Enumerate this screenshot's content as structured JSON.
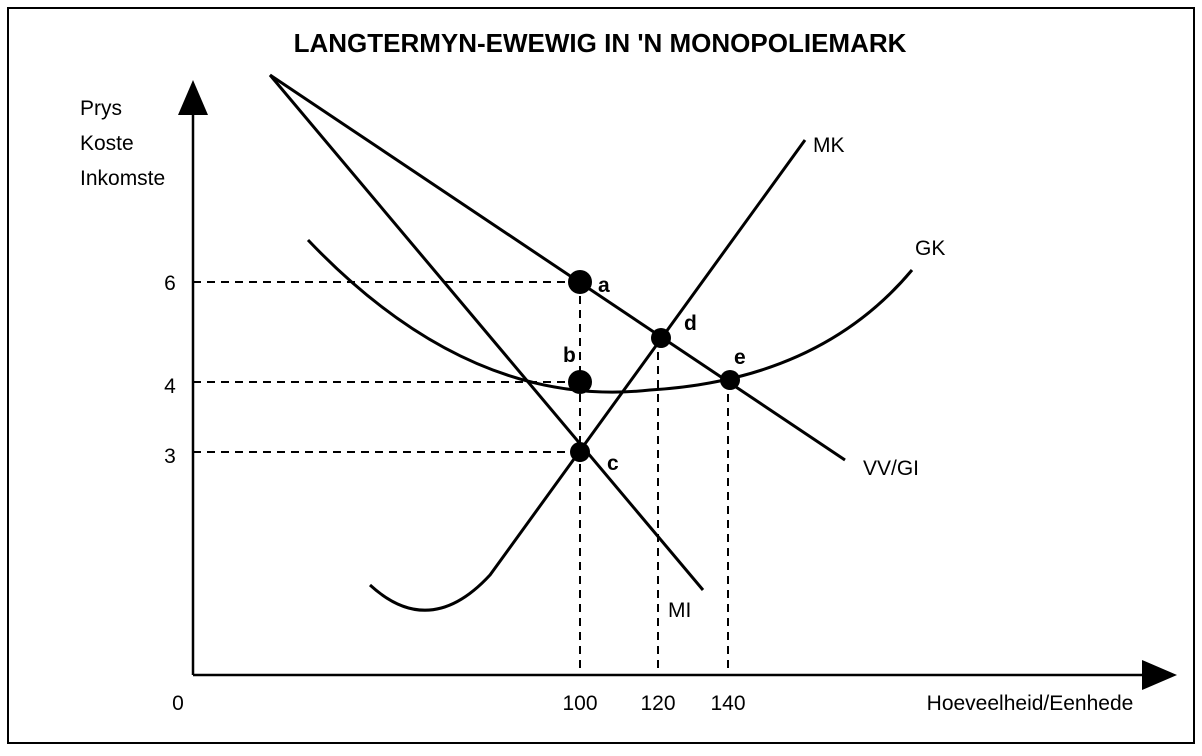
{
  "title": "LANGTERMYN-EWEWIG IN 'N MONOPOLIEMARK",
  "y_axis_label": [
    "Prys",
    "Koste",
    "Inkomste"
  ],
  "x_axis_label": "Hoeveelheid/Eenhede",
  "origin": "0",
  "y_ticks": [
    "6",
    "4",
    "3"
  ],
  "x_ticks": [
    "100",
    "120",
    "140"
  ],
  "curves": [
    "MK",
    "GK",
    "VV/GI",
    "MI"
  ],
  "points": [
    "a",
    "b",
    "c",
    "d",
    "e"
  ]
}
